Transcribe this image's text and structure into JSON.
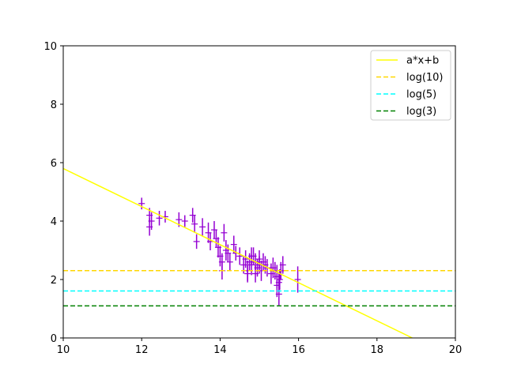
{
  "chart_data": {
    "type": "scatter",
    "title": "",
    "xlabel": "",
    "ylabel": "",
    "xlim": [
      10,
      20
    ],
    "ylim": [
      0,
      10
    ],
    "xticks": [
      "10",
      "12",
      "14",
      "16",
      "18",
      "20"
    ],
    "yticks": [
      "0",
      "2",
      "4",
      "6",
      "8",
      "10"
    ],
    "grid": false,
    "legend_position": "top-right",
    "series": [
      {
        "name": "a*x+b",
        "kind": "line",
        "style": "solid",
        "color": "#ffff00",
        "x": [
          10,
          18.9
        ],
        "y": [
          5.8,
          0
        ]
      },
      {
        "name": "log(10)",
        "kind": "hline",
        "style": "dashed",
        "color": "#ffd700",
        "y": 2.303
      },
      {
        "name": "log(5)",
        "kind": "hline",
        "style": "dashed",
        "color": "#00ffff",
        "y": 1.609
      },
      {
        "name": "log(3)",
        "kind": "hline",
        "style": "dashed",
        "color": "#008000",
        "y": 1.099
      }
    ],
    "points": {
      "color": "#9400d3",
      "marker": "+",
      "x": [
        12.0,
        12.2,
        12.25,
        12.2,
        12.45,
        12.6,
        12.95,
        13.1,
        13.3,
        13.35,
        13.4,
        13.55,
        13.7,
        13.75,
        13.85,
        13.9,
        13.95,
        14.0,
        14.05,
        14.1,
        14.15,
        14.2,
        14.25,
        14.35,
        14.4,
        14.5,
        14.6,
        14.65,
        14.7,
        14.75,
        14.8,
        14.85,
        14.9,
        14.95,
        15.0,
        15.05,
        15.1,
        15.15,
        15.2,
        15.3,
        15.35,
        15.4,
        15.45,
        15.5,
        15.52,
        15.55,
        15.6,
        15.98,
        14.8,
        14.9,
        15.0,
        14.7,
        15.45,
        15.5,
        14.05
      ],
      "y": [
        4.6,
        4.2,
        4.0,
        3.8,
        4.1,
        4.15,
        4.05,
        4.0,
        4.2,
        3.9,
        3.3,
        3.8,
        3.6,
        3.3,
        3.7,
        3.4,
        3.1,
        2.8,
        2.6,
        3.6,
        3.0,
        2.9,
        2.6,
        3.2,
        2.9,
        2.8,
        2.5,
        2.7,
        2.3,
        2.6,
        2.5,
        2.8,
        2.6,
        2.4,
        2.7,
        2.3,
        2.6,
        2.5,
        2.4,
        2.2,
        2.4,
        2.3,
        1.8,
        1.5,
        2.0,
        2.3,
        2.5,
        2.0,
        2.8,
        2.2,
        2.5,
        2.2,
        2.1,
        1.9,
        2.3
      ],
      "yerr": [
        0.2,
        0.25,
        0.3,
        0.3,
        0.25,
        0.2,
        0.25,
        0.2,
        0.25,
        0.3,
        0.25,
        0.3,
        0.35,
        0.3,
        0.3,
        0.3,
        0.35,
        0.35,
        0.3,
        0.3,
        0.35,
        0.3,
        0.3,
        0.3,
        0.25,
        0.3,
        0.3,
        0.3,
        0.35,
        0.3,
        0.35,
        0.3,
        0.3,
        0.3,
        0.3,
        0.35,
        0.3,
        0.3,
        0.3,
        0.35,
        0.35,
        0.3,
        0.4,
        0.4,
        0.35,
        0.3,
        0.3,
        0.45,
        0.3,
        0.3,
        0.3,
        0.3,
        0.4,
        0.35,
        0.3
      ]
    }
  }
}
